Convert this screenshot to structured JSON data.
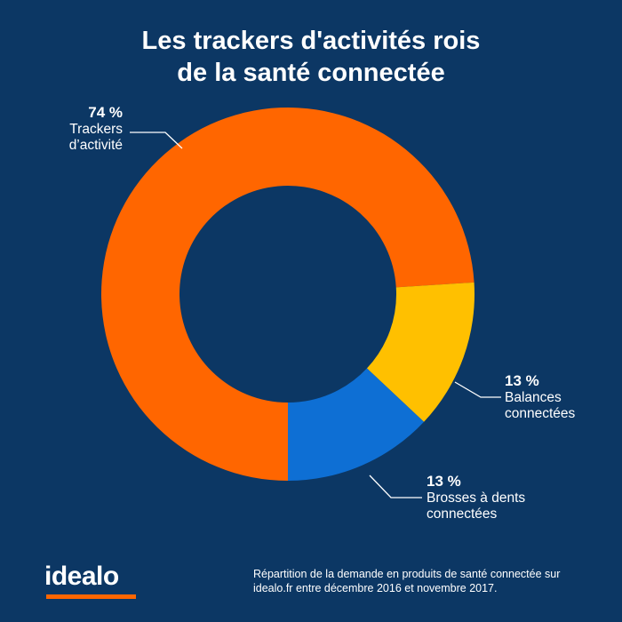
{
  "title": {
    "line1": "Les trackers d'activités rois",
    "line2": "de la santé connectée"
  },
  "colors": {
    "background": "#0c3764",
    "leader_line": "#ffffff"
  },
  "chart_data": {
    "type": "pie",
    "donut": true,
    "title": "Les trackers d'activités rois de la santé connectée",
    "start_angle_deg": 180,
    "direction": "clockwise",
    "slices": [
      {
        "label_line1": "Trackers",
        "label_line2": "d’activité",
        "value": 74,
        "value_label": "74 %",
        "color": "#ff6600"
      },
      {
        "label_line1": "Balances",
        "label_line2": "connectées",
        "value": 13,
        "value_label": "13 %",
        "color": "#ffc000"
      },
      {
        "label_line1": "Brosses à dents",
        "label_line2": "connectées",
        "value": 13,
        "value_label": "13 %",
        "color": "#0e6fd4"
      }
    ]
  },
  "brand": {
    "logo_text": "idealo",
    "accent": "#ff6600"
  },
  "footnote": {
    "line1": "Répartition de la demande en produits de santé connectée sur",
    "line2": "idealo.fr entre décembre 2016 et novembre 2017."
  }
}
